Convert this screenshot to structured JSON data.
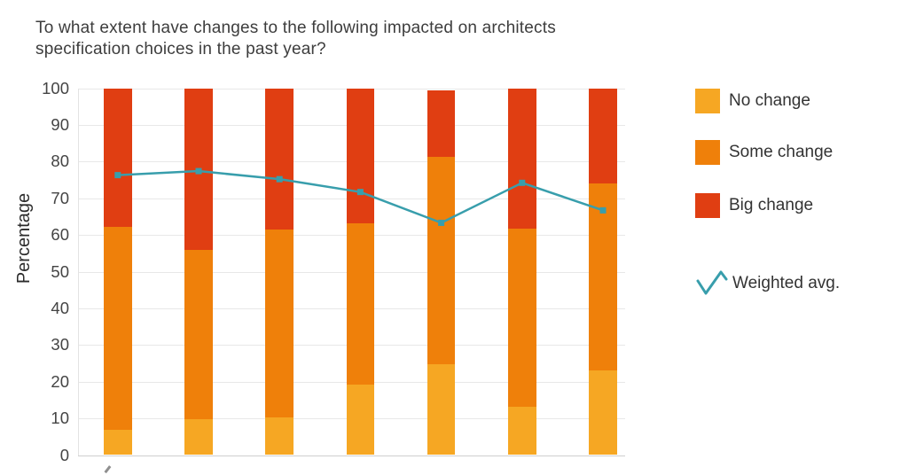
{
  "title": {
    "text": "To what extent have changes to the following impacted on architects specification choices in the past year?",
    "lines": [
      "To what extent have changes to the following impacted on architects",
      "specification choices in the past year?"
    ]
  },
  "y_axis": {
    "label": "Percentage",
    "ticks": [
      0,
      10,
      20,
      30,
      40,
      50,
      60,
      70,
      80,
      90,
      100
    ]
  },
  "legend": {
    "items": [
      {
        "label": "No change",
        "color": "#F6A723"
      },
      {
        "label": "Some change",
        "color": "#EF800A"
      },
      {
        "label": "Big change",
        "color": "#E03E12"
      }
    ],
    "line_item": {
      "label": "Weighted avg.",
      "color": "#389EAC"
    }
  },
  "colors": {
    "background": "#ffffff",
    "grid": "#e8e8e8",
    "axis_line": "#cfcfcf",
    "title_text": "#3d3d3d",
    "tick_text": "#444444"
  },
  "chart_data": {
    "type": "bar",
    "subtype": "stacked-bars-with-line-overlay",
    "title": "To what extent have changes to the following impacted on architects specification choices in the past year?",
    "xlabel": "",
    "ylabel": "Percentage",
    "ylim": [
      0,
      100
    ],
    "grid": true,
    "legend_position": "right",
    "categories": [
      "",
      "",
      "",
      "",
      "",
      "",
      ""
    ],
    "categories_note": "x-axis category labels are cropped out of the visible image",
    "series": [
      {
        "name": "No change",
        "color": "#F6A723",
        "values": [
          6.9,
          9.8,
          10.3,
          19.3,
          24.8,
          13.2,
          23.0
        ]
      },
      {
        "name": "Some change",
        "color": "#EF800A",
        "values": [
          55.2,
          46.2,
          51.2,
          43.9,
          56.5,
          48.5,
          51.0
        ]
      },
      {
        "name": "Big change",
        "color": "#E03E12",
        "values": [
          37.9,
          44.0,
          38.5,
          36.8,
          18.2,
          38.3,
          26.0
        ]
      }
    ],
    "line_series": {
      "name": "Weighted avg.",
      "color": "#389EAC",
      "values": [
        76.3,
        77.4,
        75.2,
        71.7,
        63.3,
        74.2,
        66.7
      ]
    }
  }
}
